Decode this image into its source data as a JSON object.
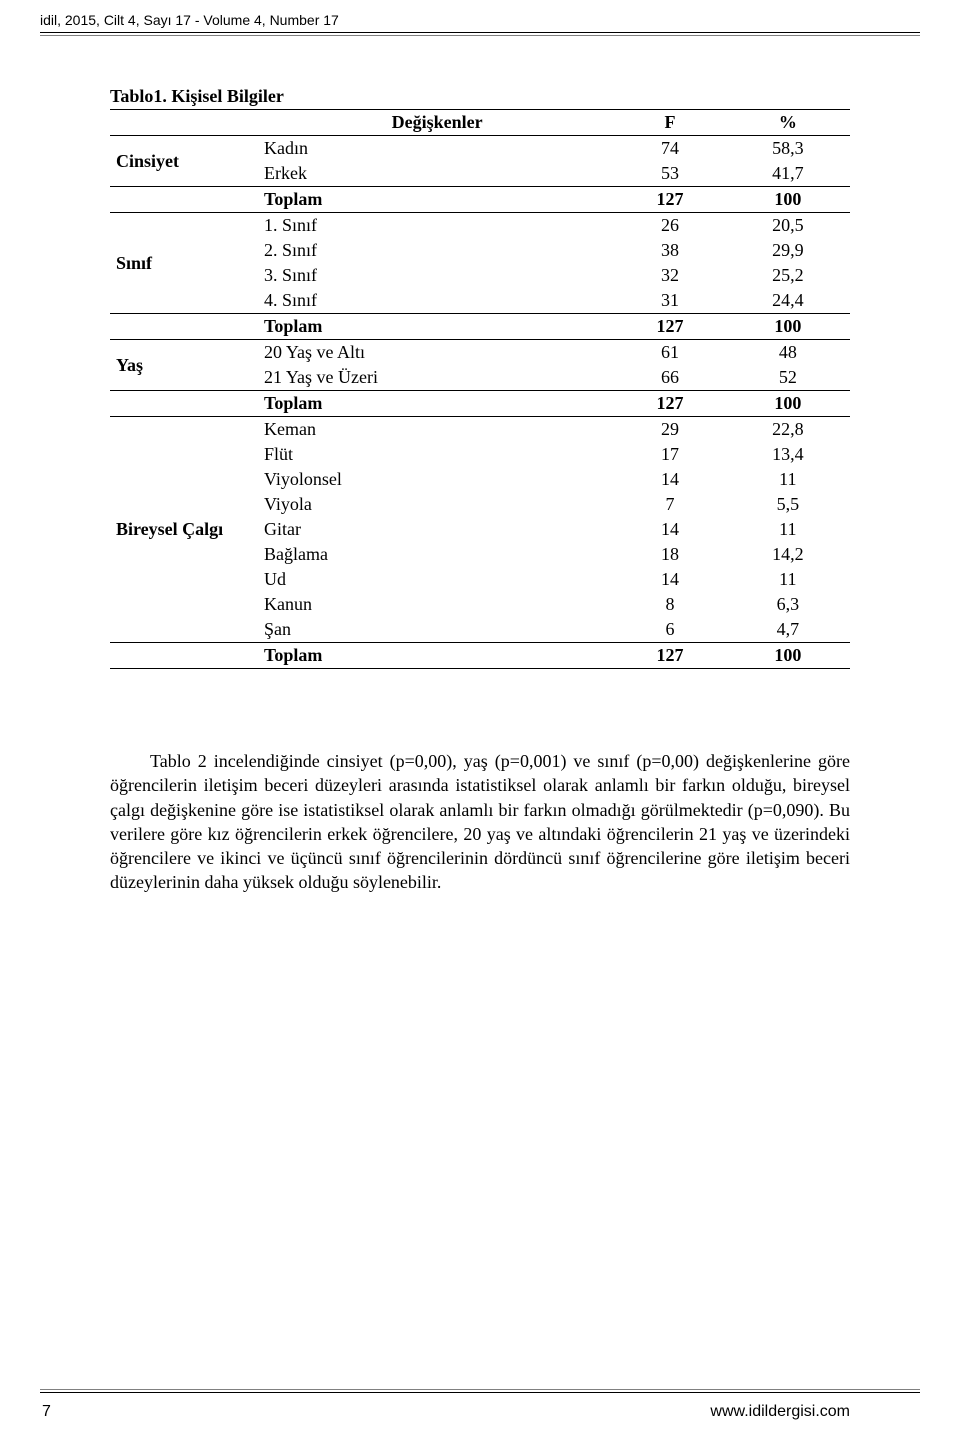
{
  "header": {
    "text": "idil, 2015, Cilt 4, Sayı 17  -  Volume 4, Number 17"
  },
  "table": {
    "title": "Tablo1. Kişisel Bilgiler",
    "columns": {
      "var": "Değişkenler",
      "f": "F",
      "pct": "%"
    },
    "groups": [
      {
        "label": "Cinsiyet",
        "rows": [
          {
            "name": "Kadın",
            "f": "74",
            "pct": "58,3"
          },
          {
            "name": "Erkek",
            "f": "53",
            "pct": "41,7"
          }
        ],
        "total": {
          "name": "Toplam",
          "f": "127",
          "pct": "100"
        }
      },
      {
        "label": "Sınıf",
        "rows": [
          {
            "name": "1. Sınıf",
            "f": "26",
            "pct": "20,5"
          },
          {
            "name": "2. Sınıf",
            "f": "38",
            "pct": "29,9"
          },
          {
            "name": "3. Sınıf",
            "f": "32",
            "pct": "25,2"
          },
          {
            "name": "4. Sınıf",
            "f": "31",
            "pct": "24,4"
          }
        ],
        "total": {
          "name": "Toplam",
          "f": "127",
          "pct": "100"
        }
      },
      {
        "label": "Yaş",
        "rows": [
          {
            "name": "20 Yaş ve Altı",
            "f": "61",
            "pct": "48"
          },
          {
            "name": "21 Yaş ve Üzeri",
            "f": "66",
            "pct": "52"
          }
        ],
        "total": {
          "name": "Toplam",
          "f": "127",
          "pct": "100"
        }
      },
      {
        "label": "Bireysel Çalgı",
        "rows": [
          {
            "name": "Keman",
            "f": "29",
            "pct": "22,8"
          },
          {
            "name": "Flüt",
            "f": "17",
            "pct": "13,4"
          },
          {
            "name": "Viyolonsel",
            "f": "14",
            "pct": "11"
          },
          {
            "name": "Viyola",
            "f": "7",
            "pct": "5,5"
          },
          {
            "name": "Gitar",
            "f": "14",
            "pct": "11"
          },
          {
            "name": "Bağlama",
            "f": "18",
            "pct": "14,2"
          },
          {
            "name": "Ud",
            "f": "14",
            "pct": "11"
          },
          {
            "name": "Kanun",
            "f": "8",
            "pct": "6,3"
          },
          {
            "name": "Şan",
            "f": "6",
            "pct": "4,7"
          }
        ],
        "total": {
          "name": "Toplam",
          "f": "127",
          "pct": "100"
        }
      }
    ]
  },
  "paragraph": "Tablo 2 incelendiğinde cinsiyet (p=0,00), yaş (p=0,001) ve sınıf (p=0,00) değişkenlerine göre öğrencilerin iletişim beceri düzeyleri arasında istatistiksel olarak anlamlı bir farkın olduğu, bireysel çalgı değişkenine göre ise istatistiksel olarak anlamlı bir farkın olmadığı görülmektedir (p=0,090). Bu verilere göre kız öğrencilerin erkek öğrencilere, 20 yaş ve altındaki öğrencilerin 21 yaş ve üzerindeki öğrencilere ve ikinci ve üçüncü sınıf öğrencilerinin dördüncü sınıf öğrencilerine göre iletişim beceri düzeylerinin daha yüksek olduğu söylenebilir.",
  "footer": {
    "page": "7",
    "site": "www.idildergisi.com"
  }
}
